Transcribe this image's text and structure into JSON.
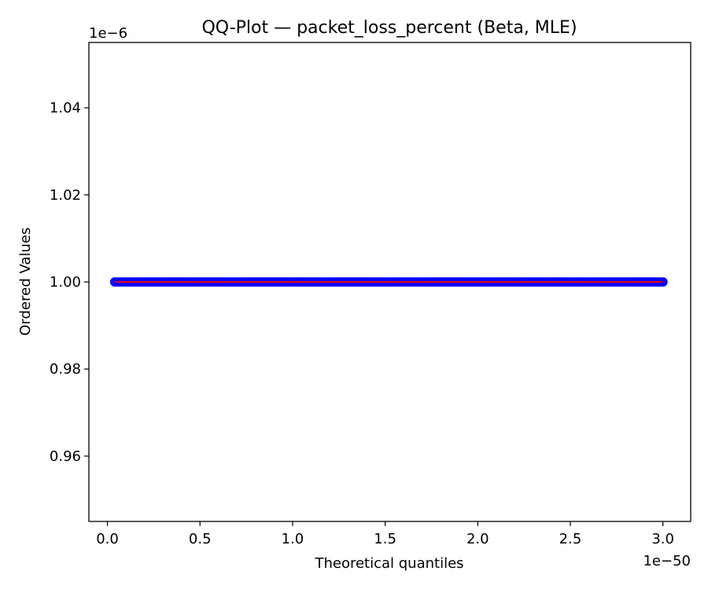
{
  "chart_data": {
    "type": "scatter",
    "title": "QQ-Plot — packet_loss_percent (Beta, MLE)",
    "xlabel": "Theoretical quantiles",
    "ylabel": "Ordered Values",
    "x_offset_label": "1e−50",
    "y_offset_label": "1e−6",
    "xlim": [
      -0.1,
      3.15
    ],
    "ylim": [
      0.945,
      1.055
    ],
    "x_ticks": [
      0.0,
      0.5,
      1.0,
      1.5,
      2.0,
      2.5,
      3.0
    ],
    "x_tick_labels": [
      "0.0",
      "0.5",
      "1.0",
      "1.5",
      "2.0",
      "2.5",
      "3.0"
    ],
    "y_ticks": [
      0.96,
      0.98,
      1.0,
      1.02,
      1.04
    ],
    "y_tick_labels": [
      "0.96",
      "0.98",
      "1.00",
      "1.02",
      "1.04"
    ],
    "grid": false,
    "series": [
      {
        "marker_color": "#0000ff",
        "x_start": 0.04,
        "x_end": 3.0,
        "y": 1.0
      }
    ],
    "reference_line": {
      "color": "#ff0000",
      "x": [
        0.04,
        3.0
      ],
      "y": [
        1.0,
        1.0
      ]
    }
  }
}
